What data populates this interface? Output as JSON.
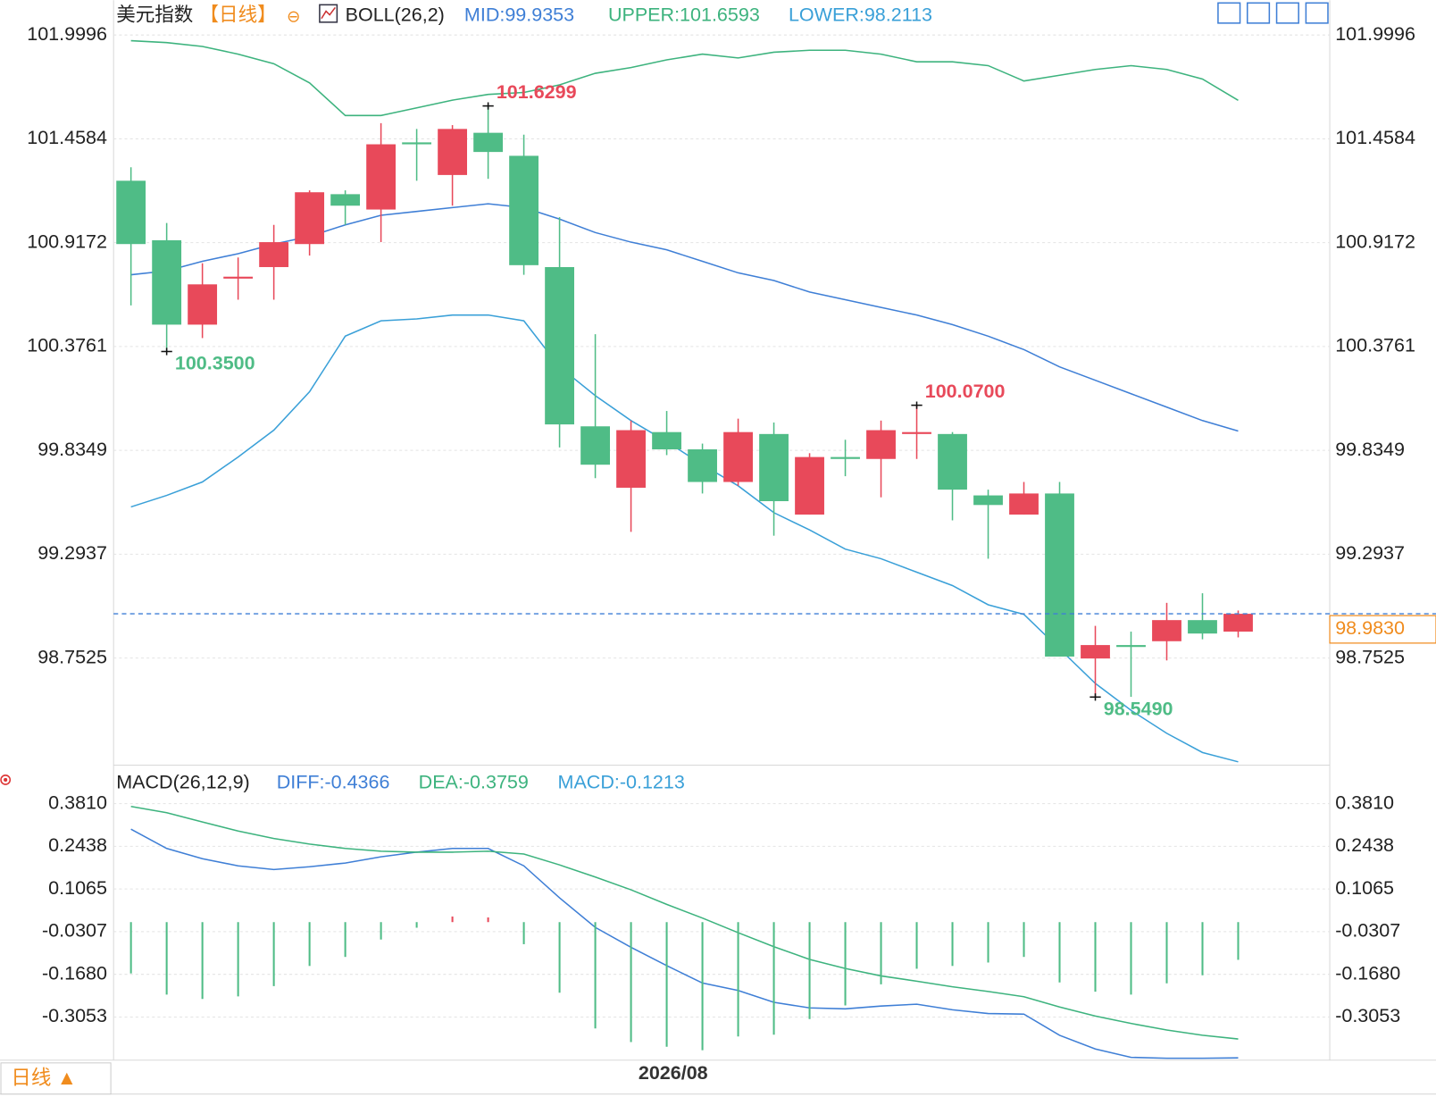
{
  "chart_data": [
    {
      "type": "candlestick",
      "title": "美元指数",
      "period": "【日线】",
      "icon": "⊖",
      "indicator": "BOLL(26,2)",
      "categories": [
        null,
        null,
        null,
        null,
        null,
        null,
        null,
        null,
        null,
        null,
        null,
        null,
        null,
        null,
        null,
        "2026/08",
        null,
        null,
        null,
        null,
        null,
        null,
        null,
        null,
        null,
        null,
        null,
        null,
        null,
        null,
        null,
        null
      ],
      "open": [
        101.24,
        100.93,
        100.49,
        100.73,
        100.79,
        100.91,
        101.17,
        101.09,
        101.44,
        101.27,
        101.49,
        101.37,
        100.79,
        99.96,
        99.64,
        99.93,
        99.84,
        99.67,
        99.92,
        99.5,
        99.8,
        99.79,
        99.92,
        99.92,
        99.6,
        99.5,
        99.61,
        98.75,
        98.82,
        98.84,
        98.95,
        98.89
      ],
      "high": [
        101.31,
        101.02,
        100.81,
        100.84,
        101.01,
        101.19,
        101.19,
        101.54,
        101.51,
        101.53,
        101.6299,
        101.48,
        101.05,
        100.44,
        99.99,
        100.04,
        99.87,
        100.0,
        99.98,
        99.82,
        99.89,
        99.99,
        100.07,
        99.93,
        99.63,
        99.67,
        99.67,
        98.92,
        98.89,
        99.04,
        99.09,
        99.0
      ],
      "low": [
        100.59,
        100.35,
        100.42,
        100.62,
        100.62,
        100.85,
        101.01,
        100.92,
        101.24,
        101.11,
        101.25,
        100.75,
        99.85,
        99.69,
        99.41,
        99.81,
        99.61,
        99.65,
        99.39,
        99.5,
        99.7,
        99.59,
        99.79,
        99.47,
        99.27,
        99.5,
        98.76,
        98.549,
        98.55,
        98.74,
        98.85,
        98.86
      ],
      "close": [
        100.91,
        100.49,
        100.7,
        100.74,
        100.92,
        101.18,
        101.11,
        101.43,
        101.43,
        101.51,
        101.39,
        100.8,
        99.97,
        99.76,
        99.94,
        99.84,
        99.67,
        99.93,
        99.57,
        99.8,
        99.79,
        99.94,
        99.93,
        99.63,
        99.55,
        99.61,
        98.76,
        98.82,
        98.81,
        98.95,
        98.88,
        98.983
      ],
      "up_color": "#e8495a",
      "down_color": "#4fbc86",
      "series": [
        {
          "name": "MID:99.9353",
          "color": "#3f7fd6",
          "values": [
            100.75,
            100.77,
            100.82,
            100.86,
            100.91,
            100.95,
            101.01,
            101.06,
            101.08,
            101.1,
            101.12,
            101.1,
            101.04,
            100.97,
            100.92,
            100.88,
            100.82,
            100.76,
            100.72,
            100.66,
            100.62,
            100.58,
            100.54,
            100.49,
            100.43,
            100.36,
            100.27,
            100.2,
            100.13,
            100.06,
            99.99,
            99.9353
          ]
        },
        {
          "name": "UPPER:101.6593",
          "color": "#3db37e",
          "values": [
            101.97,
            101.96,
            101.94,
            101.9,
            101.85,
            101.75,
            101.58,
            101.58,
            101.62,
            101.66,
            101.69,
            101.7,
            101.74,
            101.8,
            101.83,
            101.87,
            101.9,
            101.88,
            101.91,
            101.92,
            101.92,
            101.9,
            101.86,
            101.86,
            101.84,
            101.76,
            101.79,
            101.82,
            101.84,
            101.82,
            101.77,
            101.6593
          ]
        },
        {
          "name": "LOWER:98.2113",
          "color": "#3aa0d8",
          "values": [
            99.54,
            99.6,
            99.67,
            99.8,
            99.94,
            100.14,
            100.43,
            100.51,
            100.52,
            100.54,
            100.54,
            100.51,
            100.27,
            100.12,
            99.99,
            99.88,
            99.76,
            99.65,
            99.51,
            99.42,
            99.32,
            99.27,
            99.2,
            99.13,
            99.03,
            98.98,
            98.8,
            98.62,
            98.48,
            98.36,
            98.26,
            98.2113
          ]
        }
      ],
      "ylim": [
        98.194,
        102.181
      ],
      "yticks": [
        101.9996,
        101.4584,
        100.9172,
        100.3761,
        99.8349,
        99.2937,
        98.7525
      ],
      "grid": true,
      "last_price": {
        "value": 98.983,
        "label": "98.9830"
      },
      "extremes": [
        {
          "value": 101.6299,
          "label": "101.6299"
        },
        {
          "value": 100.35,
          "label": "100.3500"
        },
        {
          "value": 100.07,
          "label": "100.0700"
        },
        {
          "value": 98.549,
          "label": "98.5490"
        }
      ]
    },
    {
      "type": "macd",
      "indicator": "MACD(26,12,9)",
      "series": [
        {
          "name": "DIFF:-0.4366",
          "color": "#3f7fd6",
          "values": [
            0.299,
            0.237,
            0.204,
            0.181,
            0.169,
            0.178,
            0.19,
            0.21,
            0.225,
            0.237,
            0.237,
            0.181,
            0.078,
            -0.017,
            -0.081,
            -0.14,
            -0.196,
            -0.22,
            -0.258,
            -0.276,
            -0.279,
            -0.27,
            -0.264,
            -0.282,
            -0.294,
            -0.296,
            -0.364,
            -0.408,
            -0.435,
            -0.438,
            -0.438,
            -0.4366
          ]
        },
        {
          "name": "DEA:-0.3759",
          "color": "#3db37e",
          "values": [
            0.372,
            0.352,
            0.322,
            0.293,
            0.269,
            0.251,
            0.237,
            0.228,
            0.225,
            0.225,
            0.228,
            0.219,
            0.184,
            0.145,
            0.104,
            0.057,
            0.013,
            -0.034,
            -0.079,
            -0.12,
            -0.149,
            -0.173,
            -0.19,
            -0.208,
            -0.223,
            -0.24,
            -0.273,
            -0.302,
            -0.326,
            -0.347,
            -0.364,
            -0.3759
          ]
        },
        {
          "name": "MACD:-0.1213",
          "color": "#3aa0d8",
          "up_color": "#e8495a",
          "down_color": "#4fbc86",
          "values": [
            -0.165,
            -0.233,
            -0.247,
            -0.239,
            -0.206,
            -0.141,
            -0.112,
            -0.056,
            -0.018,
            0.018,
            0.015,
            -0.071,
            -0.227,
            -0.342,
            -0.386,
            -0.401,
            -0.412,
            -0.368,
            -0.362,
            -0.312,
            -0.268,
            -0.2,
            -0.15,
            -0.141,
            -0.13,
            -0.112,
            -0.194,
            -0.224,
            -0.233,
            -0.197,
            -0.171,
            -0.1213
          ]
        }
      ],
      "ylim": [
        -0.444,
        0.496
      ],
      "yticks": [
        {
          "value": 0.381,
          "label": "0.3810"
        },
        0.2438,
        0.1065,
        -0.0307,
        {
          "value": -0.168,
          "label": "-0.1680"
        },
        -0.3053
      ],
      "grid": true
    }
  ],
  "footer": {
    "period_button": "日线 ▲"
  }
}
